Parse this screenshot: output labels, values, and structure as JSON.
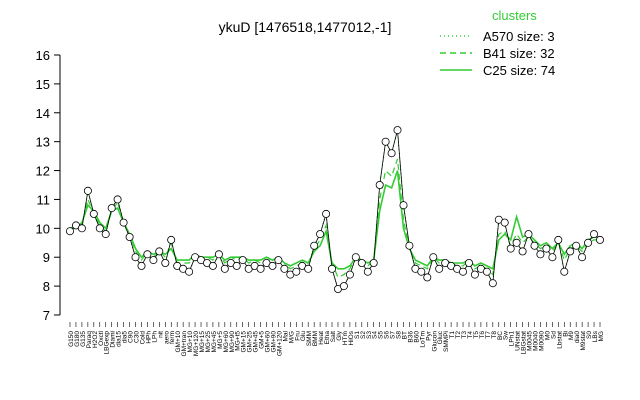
{
  "chart_data": {
    "type": "line",
    "title": "ykuD [1476518,1477012,-1]",
    "xlabel": "",
    "ylabel": "",
    "ylim": [
      7,
      16
    ],
    "y_ticks": [
      7,
      8,
      9,
      10,
      11,
      12,
      13,
      14,
      15,
      16
    ],
    "grid": false,
    "legend": {
      "title": "clusters",
      "placement": "top-right",
      "color": "#33cc33",
      "entries": [
        {
          "label": "A570 size: 3",
          "dash": "1,3"
        },
        {
          "label": "B41 size: 32",
          "dash": "6,4"
        },
        {
          "label": "C25 size: 74",
          "dash": ""
        }
      ]
    },
    "colors": {
      "line": "#33cc33",
      "points": "#000000",
      "axis": "#000000"
    },
    "x_tick_labels": [
      "G150",
      "G180",
      "G135",
      "Paraq",
      "H2O2",
      "Oxctl",
      "LBGexp",
      "Diami",
      "dia15",
      "dia5",
      "C90",
      "C30",
      "Cold",
      "HPh",
      "LPh",
      "nit",
      "aero",
      "ferm",
      "GM+10",
      "GM+tran",
      "MG+10",
      "MG+120",
      "MG+15",
      "MG+25",
      "MG+45",
      "MG+5",
      "MG+60",
      "MG+90",
      "MG+t5",
      "GM+15",
      "GM+25",
      "GM+45",
      "GM+5",
      "GM+60",
      "GM+90",
      "GM+120",
      "Mal",
      "M/G",
      "Fru",
      "Glu",
      "SMM",
      "BMM",
      "Heat",
      "Etha",
      "Salt",
      "Gly",
      "HTm",
      "HiOs",
      "S1",
      "S2",
      "S3",
      "S4",
      "S5",
      "S6",
      "S7",
      "S8",
      "BT",
      "B36",
      "B60",
      "LoTm",
      "Pyr",
      "Glucon",
      "Gluc",
      "SMMPi",
      "T1",
      "T2",
      "T3",
      "T4",
      "T5",
      "T6",
      "T7",
      "T8",
      "BC",
      "Sw",
      "LPh1",
      "UNstat",
      "LBGstat",
      "M0045",
      "M0040",
      "M0090",
      "M0",
      "Sd",
      "Lbstat",
      "Bi",
      "M9",
      "dia0",
      "M9stat",
      "S0",
      "LBs",
      "MG"
    ],
    "series": [
      {
        "name": "",
        "values": [
          9.9,
          10.1,
          10.0,
          11.3,
          10.5,
          10.0,
          9.8,
          10.7,
          11.0,
          10.2,
          9.7,
          9.0,
          8.7,
          9.1,
          8.9,
          9.2,
          8.8,
          9.6,
          8.7,
          8.6,
          8.5,
          9.0,
          8.9,
          8.8,
          8.7,
          9.1,
          8.6,
          8.8,
          8.7,
          8.9,
          8.6,
          8.7,
          8.6,
          8.8,
          8.7,
          8.9,
          8.6,
          8.4,
          8.5,
          8.7,
          8.6,
          9.4,
          9.8,
          10.5,
          8.6,
          7.9,
          8.0,
          8.4,
          9.0,
          8.8,
          8.5,
          8.8,
          11.5,
          13.0,
          12.6,
          13.4,
          10.8,
          9.4,
          8.6,
          8.5,
          8.3,
          9.0,
          8.6,
          8.8,
          8.7,
          8.6,
          8.5,
          8.8,
          8.4,
          8.6,
          8.5,
          8.1,
          10.3,
          10.2,
          9.3,
          9.5,
          9.2,
          9.8,
          9.4,
          9.1,
          9.3,
          9.0,
          9.6,
          8.5,
          9.2,
          9.4,
          9.0,
          9.5,
          9.8,
          9.6
        ]
      },
      {
        "name": "",
        "values": [
          10.0,
          10.1,
          10.1,
          11.0,
          10.5,
          10.1,
          9.9,
          10.6,
          10.9,
          10.2,
          9.8,
          9.2,
          8.9,
          9.2,
          9.0,
          9.2,
          9.0,
          9.5,
          8.8,
          8.8,
          8.8,
          9.1,
          9.0,
          9.0,
          8.9,
          9.1,
          8.8,
          9.0,
          8.9,
          9.0,
          8.8,
          8.9,
          8.8,
          8.9,
          8.9,
          9.0,
          8.8,
          8.6,
          8.7,
          8.8,
          8.8,
          9.3,
          9.6,
          10.1,
          8.8,
          8.3,
          8.4,
          8.6,
          9.0,
          8.9,
          8.7,
          8.9,
          11.0,
          12.0,
          11.8,
          12.4,
          10.3,
          9.3,
          8.8,
          8.7,
          8.6,
          9.0,
          8.8,
          8.9,
          8.8,
          8.7,
          8.7,
          8.9,
          8.6,
          8.7,
          8.6,
          8.4,
          9.8,
          9.9,
          9.4,
          9.8,
          9.5,
          9.7,
          9.5,
          9.3,
          9.4,
          9.2,
          9.5,
          8.9,
          9.3,
          9.4,
          9.2,
          9.5,
          9.6,
          9.6
        ]
      },
      {
        "name": "",
        "values": [
          10.0,
          10.0,
          10.2,
          10.8,
          10.6,
          10.2,
          10.0,
          10.6,
          10.7,
          10.2,
          9.8,
          9.3,
          9.0,
          9.2,
          9.1,
          9.2,
          9.1,
          9.3,
          8.9,
          8.9,
          8.9,
          9.1,
          9.0,
          9.0,
          9.0,
          9.1,
          8.9,
          9.0,
          9.0,
          9.0,
          8.9,
          8.9,
          8.9,
          9.0,
          8.9,
          9.0,
          8.8,
          8.7,
          8.8,
          8.9,
          8.8,
          9.2,
          9.4,
          9.9,
          8.8,
          8.6,
          8.6,
          8.7,
          9.0,
          8.9,
          8.8,
          8.9,
          10.6,
          11.5,
          11.4,
          12.0,
          10.0,
          9.3,
          8.9,
          8.8,
          8.7,
          9.0,
          8.9,
          8.9,
          8.8,
          8.8,
          8.8,
          8.9,
          8.7,
          8.8,
          8.7,
          8.6,
          9.6,
          9.8,
          9.6,
          10.4,
          9.7,
          9.8,
          9.6,
          9.4,
          9.5,
          9.3,
          9.5,
          9.1,
          9.4,
          9.5,
          9.3,
          9.6,
          9.7,
          9.7
        ]
      }
    ]
  }
}
